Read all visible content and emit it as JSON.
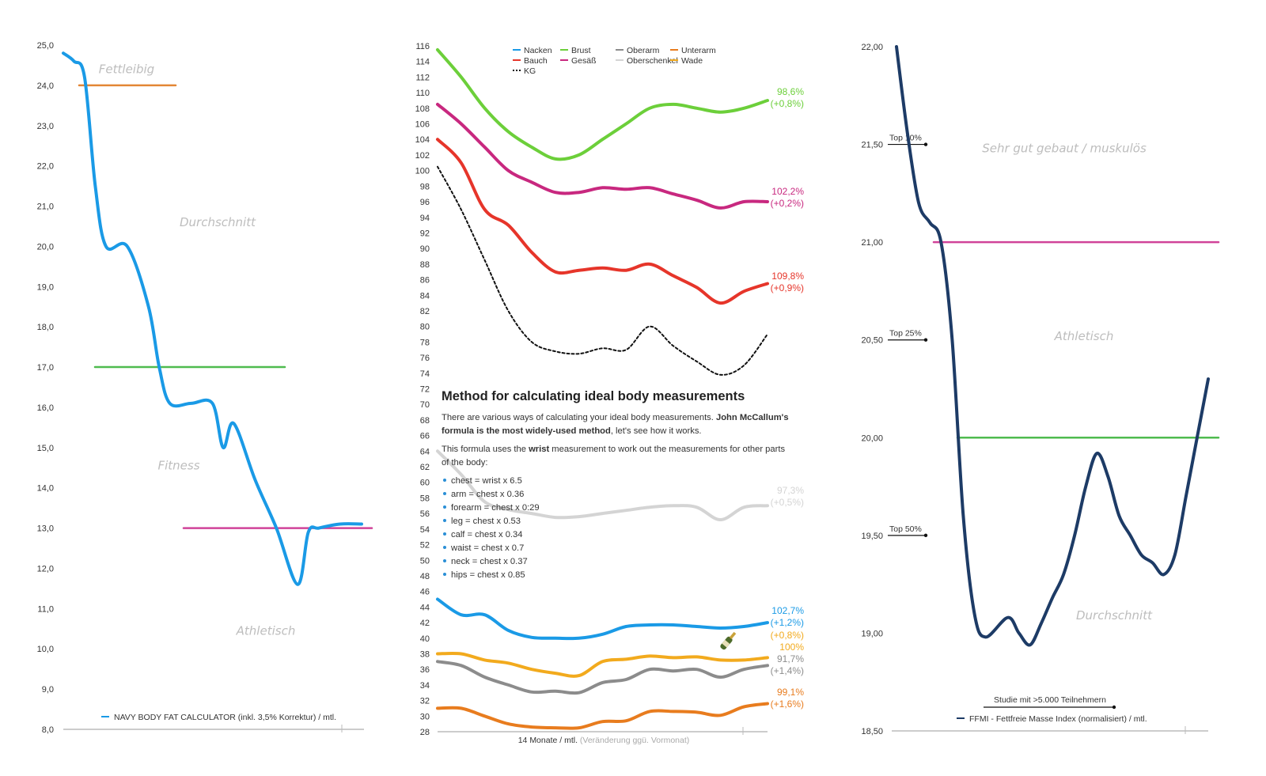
{
  "chart_data": [
    {
      "type": "line",
      "id": "bodyfat",
      "y_ticks": [
        "25,0",
        "24,0",
        "23,0",
        "22,0",
        "21,0",
        "20,0",
        "19,0",
        "18,0",
        "17,0",
        "16,0",
        "15,0",
        "14,0",
        "13,0",
        "12,0",
        "11,0",
        "10,0",
        "9,0",
        "8,0"
      ],
      "ylim": [
        8,
        25
      ],
      "series": [
        {
          "name": "NAVY BODY FAT CALCULATOR (inkl. 3,5% Korrektur) / mtl.",
          "color": "#1a9ae6",
          "x": [
            0,
            0.5,
            1,
            1.5,
            2,
            3,
            4,
            4.5,
            5,
            6,
            7,
            7.5,
            8,
            9,
            10,
            11,
            11.5,
            12,
            13,
            14
          ],
          "values": [
            24.8,
            24.6,
            24.2,
            21.5,
            20.0,
            20.0,
            18.5,
            17.0,
            16.1,
            16.1,
            16.1,
            15.0,
            15.6,
            14.2,
            13.0,
            11.6,
            12.9,
            13.0,
            13.1,
            13.1
          ]
        }
      ],
      "reference_lines": [
        {
          "value": 24.0,
          "color": "#e07a20"
        },
        {
          "value": 17.0,
          "color": "#3cb43c"
        },
        {
          "value": 13.0,
          "color": "#cc2f8f"
        }
      ],
      "zones": [
        "Fettleibig",
        "Durchschnitt",
        "Fitness",
        "Athletisch"
      ],
      "legend": "NAVY BODY FAT CALCULATOR (inkl. 3,5% Korrektur) / mtl."
    },
    {
      "type": "line",
      "id": "measurements",
      "xlabel": "14 Monate / mtl.",
      "xlabel_note": "(Veränderung ggü. Vormonat)",
      "y_ticks": [
        "116",
        "114",
        "112",
        "110",
        "108",
        "106",
        "104",
        "102",
        "100",
        "98",
        "96",
        "94",
        "92",
        "90",
        "88",
        "86",
        "84",
        "82",
        "80",
        "78",
        "76",
        "74",
        "72",
        "70",
        "68",
        "66",
        "64",
        "62",
        "60",
        "58",
        "56",
        "54",
        "52",
        "50",
        "48",
        "46",
        "44",
        "42",
        "40",
        "38",
        "36",
        "34",
        "32",
        "30",
        "28"
      ],
      "ylim": [
        28,
        116
      ],
      "legend": [
        {
          "name": "Nacken",
          "color": "#1a9ae6",
          "dashed": false
        },
        {
          "name": "Brust",
          "color": "#6ccf3a",
          "dashed": false
        },
        {
          "name": "Oberarm",
          "color": "#8c8c8c",
          "dashed": false
        },
        {
          "name": "Unterarm",
          "color": "#e87c1e",
          "dashed": false
        },
        {
          "name": "Bauch",
          "color": "#e6352a",
          "dashed": false
        },
        {
          "name": "Gesäß",
          "color": "#c8287f",
          "dashed": false
        },
        {
          "name": "Oberschenkel",
          "color": "#d4d4d4",
          "dashed": false
        },
        {
          "name": "Wade",
          "color": "#f2aa1d",
          "dashed": false
        },
        {
          "name": "KG",
          "color": "#111111",
          "dashed": true
        }
      ],
      "series": [
        {
          "name": "Brust",
          "color": "#6ccf3a",
          "label": "98,6%",
          "change": "(+0,8%)",
          "values": [
            115.5,
            112,
            108,
            105,
            103,
            101.5,
            102,
            104,
            106,
            108,
            108.5,
            108,
            107.5,
            108,
            109
          ]
        },
        {
          "name": "Gesäß",
          "color": "#c8287f",
          "label": "102,2%",
          "change": "(+0,2%)",
          "values": [
            108.5,
            106,
            103,
            100,
            98.5,
            97.2,
            97.2,
            97.8,
            97.6,
            97.8,
            97,
            96.2,
            95.2,
            96,
            96
          ]
        },
        {
          "name": "Bauch",
          "color": "#e6352a",
          "label": "109,8%",
          "change": "(+0,9%)",
          "values": [
            104,
            101,
            95,
            93,
            89.5,
            87,
            87.2,
            87.5,
            87.2,
            88,
            86.5,
            85,
            83,
            84.5,
            85.5
          ]
        },
        {
          "name": "KG",
          "color": "#111111",
          "dashed": true,
          "label": "",
          "change": "",
          "values": [
            100.5,
            95,
            88.5,
            82,
            78,
            76.8,
            76.5,
            77.2,
            77,
            80,
            77.5,
            75.5,
            73.8,
            75,
            79
          ]
        },
        {
          "name": "Oberschenkel",
          "color": "#d4d4d4",
          "label": "97,3%",
          "change": "(+0,5%)",
          "values": [
            64,
            61,
            57.5,
            56.5,
            56,
            55.5,
            55.6,
            56,
            56.4,
            56.8,
            57,
            56.8,
            55.2,
            56.8,
            57
          ]
        },
        {
          "name": "Nacken",
          "color": "#1a9ae6",
          "label": "102,7%",
          "change": "(+1,2%)",
          "values": [
            45,
            43,
            43,
            41,
            40.1,
            40,
            40,
            40.5,
            41.5,
            41.7,
            41.7,
            41.5,
            41.3,
            41.5,
            42
          ]
        },
        {
          "name": "Wade",
          "color": "#f2aa1d",
          "label": "100%",
          "change": "(+0,8%)",
          "values": [
            38,
            38,
            37.2,
            36.8,
            36,
            35.5,
            35.2,
            37,
            37.3,
            37.7,
            37.5,
            37.6,
            37.2,
            37.2,
            37.5
          ]
        },
        {
          "name": "Oberarm",
          "color": "#8c8c8c",
          "label": "91,7%",
          "change": "(+1,4%)",
          "values": [
            37,
            36.5,
            35,
            34,
            33.1,
            33.2,
            33,
            34.3,
            34.7,
            36,
            35.8,
            36,
            35,
            36,
            36.5
          ]
        },
        {
          "name": "Unterarm",
          "color": "#e87c1e",
          "label": "99,1%",
          "change": "(+1,6%)",
          "values": [
            31,
            31,
            30,
            29,
            28.6,
            28.5,
            28.5,
            29.3,
            29.4,
            30.6,
            30.6,
            30.5,
            30.1,
            31.2,
            31.6
          ]
        }
      ]
    },
    {
      "type": "line",
      "id": "ffmi",
      "y_ticks": [
        "22,00",
        "21,50",
        "21,00",
        "20,50",
        "20,00",
        "19,50",
        "19,00",
        "18,50"
      ],
      "ylim": [
        18.5,
        22.0
      ],
      "series": [
        {
          "name": "FFMI - Fettfreie Masse Index (normalisiert) / mtl.",
          "color": "#1d3b66",
          "x": [
            0,
            0.5,
            1,
            1.5,
            2,
            2.5,
            3,
            3.5,
            4,
            5,
            5.5,
            6,
            6.5,
            7,
            7.5,
            8,
            8.5,
            9,
            9.5,
            10,
            10.5,
            11,
            11.5,
            12,
            12.5,
            13,
            13.5,
            14
          ],
          "values": [
            22.0,
            21.55,
            21.2,
            21.1,
            21.0,
            20.5,
            19.6,
            19.1,
            18.98,
            19.08,
            19.0,
            18.94,
            19.05,
            19.18,
            19.3,
            19.5,
            19.75,
            19.92,
            19.8,
            19.6,
            19.5,
            19.4,
            19.36,
            19.3,
            19.4,
            19.7,
            20.0,
            20.3
          ]
        }
      ],
      "reference_lines": [
        {
          "value": 21.0,
          "color": "#cc2f8f"
        },
        {
          "value": 20.0,
          "color": "#3cb43c"
        }
      ],
      "percentiles": [
        {
          "label": "Top 10%",
          "value": 21.5
        },
        {
          "label": "Top 25%",
          "value": 20.5
        },
        {
          "label": "Top 50%",
          "value": 19.5
        }
      ],
      "zones": [
        "Sehr gut gebaut / muskulös",
        "Athletisch",
        "Durchschnitt"
      ],
      "study_note": "Studie mit >5.000 Teilnehmern",
      "legend": "FFMI - Fettfreie Masse Index (normalisiert) / mtl."
    }
  ],
  "method": {
    "title": "Method for calculating ideal body measurements",
    "p1_before": "There are various ways of calculating your ideal body measurements.",
    "p1_bold": "John McCallum's formula is the most widely-used method",
    "p1_after": ", let's see how it works.",
    "p2_before": "This formula uses the",
    "p2_bold": "wrist",
    "p2_after": "measurement to work out the measurements for other parts of the body:",
    "formulas": [
      "chest = wrist x 6.5",
      "arm = chest x 0.36",
      "forearm = chest x 0:29",
      "leg = chest x 0.53",
      "calf = chest x 0.34",
      "waist = chest x 0.7",
      "neck = chest x 0.37",
      "hips = chest x 0.85"
    ]
  },
  "icons": {
    "champagne": "champagne-bottle-icon"
  }
}
